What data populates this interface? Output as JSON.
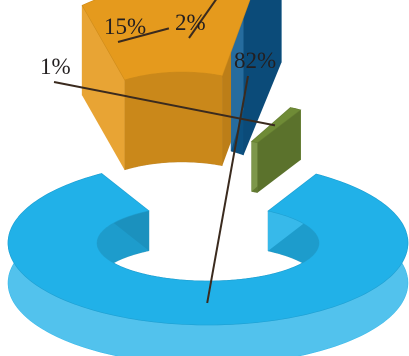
{
  "chart_data": {
    "type": "pie",
    "style": "3d-donut-exploded",
    "values": [
      82,
      15,
      2,
      1
    ],
    "labels": [
      "82%",
      "15%",
      "2%",
      "1%"
    ],
    "colors": [
      "#21b1e8",
      "#e59a1d",
      "#0e5c93",
      "#6f8b36"
    ],
    "legend": "none"
  }
}
